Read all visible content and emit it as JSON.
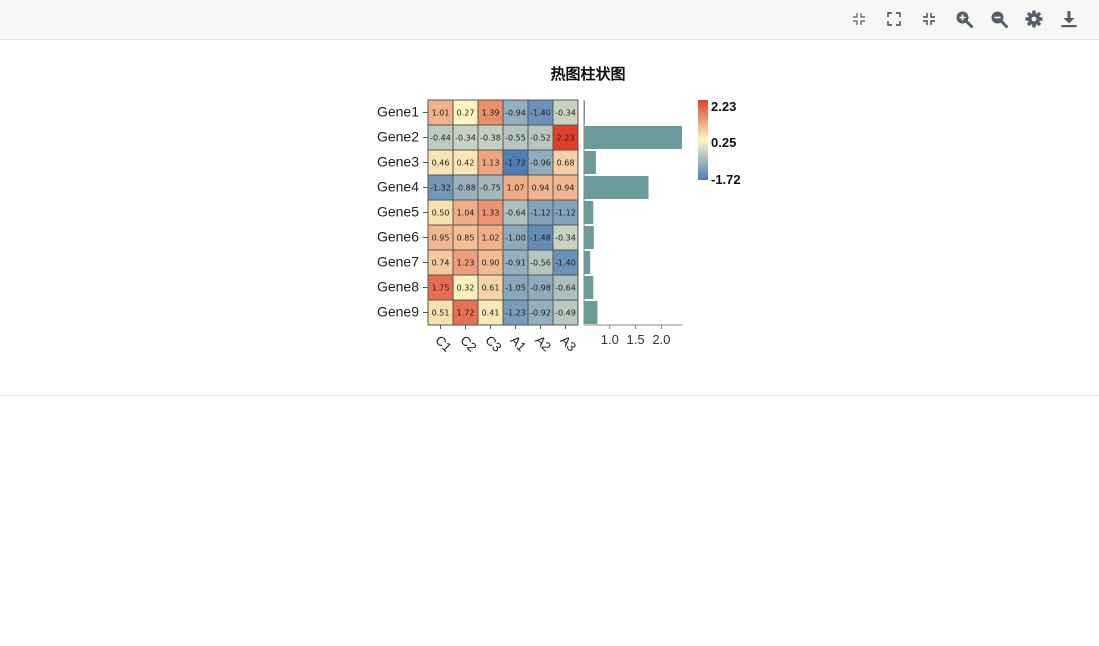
{
  "toolbar": {
    "icons": [
      "exit-fullscreen-icon",
      "fullscreen-icon",
      "collapse-icon",
      "zoom-in-icon",
      "zoom-out-icon",
      "gear-icon",
      "download-icon"
    ]
  },
  "chart_data": {
    "type": "heatmap",
    "title": "热图柱状图",
    "rows": [
      "Gene1",
      "Gene2",
      "Gene3",
      "Gene4",
      "Gene5",
      "Gene6",
      "Gene7",
      "Gene8",
      "Gene9"
    ],
    "columns": [
      "C1",
      "C2",
      "C3",
      "A1",
      "A2",
      "A3"
    ],
    "values": [
      [
        "1.01",
        "0.27",
        "1.39",
        "-0.94",
        "-1.40",
        "-0.34"
      ],
      [
        "-0.44",
        "-0.34",
        "-0.38",
        "-0.55",
        "-0.52",
        "2.23"
      ],
      [
        "0.46",
        "0.42",
        "1.13",
        "-1.72",
        "-0.96",
        "0.68"
      ],
      [
        "-1.32",
        "-0.88",
        "-0.75",
        "1.07",
        "0.94",
        "0.94"
      ],
      [
        "0.50",
        "1.04",
        "1.33",
        "-0.64",
        "-1.12",
        "-1.12"
      ],
      [
        "0.95",
        "0.85",
        "1.02",
        "-1.00",
        "-1.48",
        "-0.34"
      ],
      [
        "0.74",
        "1.23",
        "0.90",
        "-0.91",
        "-0.56",
        "-1.40"
      ],
      [
        "1.75",
        "0.32",
        "0.61",
        "-1.05",
        "-0.98",
        "-0.64"
      ],
      [
        "0.51",
        "1.72",
        "0.41",
        "-1.23",
        "-0.92",
        "-0.49"
      ]
    ],
    "bar_values": [
      0.52,
      2.4,
      0.73,
      1.75,
      0.68,
      0.69,
      0.62,
      0.68,
      0.76
    ],
    "bar_axis": {
      "ticks": [
        "1.0",
        "1.5",
        "2.0"
      ],
      "tick_values": [
        1.0,
        1.5,
        2.0
      ],
      "min": 0.5,
      "max": 2.4
    },
    "bar_color": "#6a9a9a",
    "legend": {
      "max": "2.23",
      "mid": "0.25",
      "min": "-1.72"
    },
    "colors": {
      "low": "#4e7db8",
      "mid": "#fbf7c4",
      "high": "#e0402c"
    }
  }
}
